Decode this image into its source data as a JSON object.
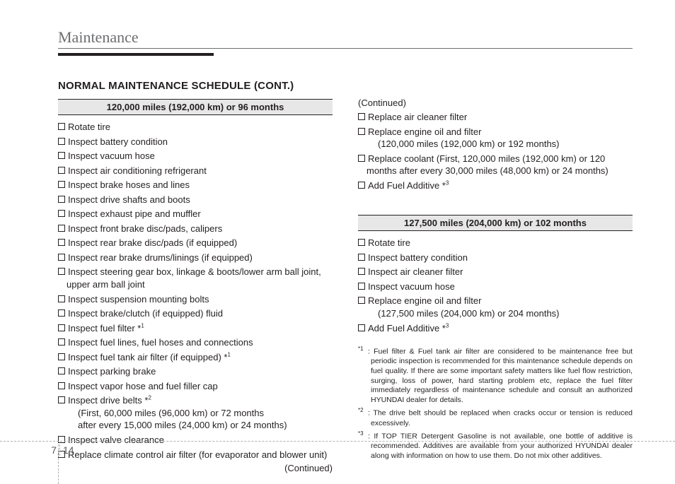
{
  "section_title": "Maintenance",
  "heading": "NORMAL MAINTENANCE SCHEDULE (CONT.)",
  "continued_label": "(Continued)",
  "left": {
    "band": "120,000 miles (192,000 km) or 96 months",
    "items": [
      {
        "text": "Rotate tire"
      },
      {
        "text": "Inspect battery condition"
      },
      {
        "text": "Inspect vacuum hose"
      },
      {
        "text": "Inspect air conditioning refrigerant"
      },
      {
        "text": "Inspect brake hoses and lines"
      },
      {
        "text": "Inspect drive shafts and boots"
      },
      {
        "text": "Inspect exhaust pipe and muffler"
      },
      {
        "text": "Inspect front brake disc/pads, calipers"
      },
      {
        "text": "Inspect rear brake disc/pads (if equipped)"
      },
      {
        "text": "Inspect rear brake drums/linings (if equipped)"
      },
      {
        "text": "Inspect steering gear box, linkage & boots/lower arm ball joint, upper arm ball joint"
      },
      {
        "text": "Inspect suspension mounting bolts"
      },
      {
        "text": "Inspect brake/clutch (if equipped) fluid"
      },
      {
        "text": "Inspect fuel filter *",
        "sup": "1"
      },
      {
        "text": "Inspect fuel lines, fuel hoses and connections"
      },
      {
        "text": "Inspect fuel tank air filter (if equipped) *",
        "sup": "1"
      },
      {
        "text": "Inspect parking brake"
      },
      {
        "text": "Inspect vapor hose and fuel filler cap"
      },
      {
        "text": "Inspect drive belts *",
        "sup": "2",
        "subs": [
          "(First, 60,000 miles (96,000 km) or 72 months",
          " after every 15,000 miles (24,000 km) or 24 months)"
        ]
      },
      {
        "text": "Inspect valve clearance"
      },
      {
        "text": "Replace climate control air filter (for evaporator and blower unit)"
      }
    ]
  },
  "right_top": {
    "items": [
      {
        "text": "Replace air cleaner filter"
      },
      {
        "text": "Replace engine oil and filter",
        "subs": [
          "(120,000 miles (192,000 km) or 192 months)"
        ]
      },
      {
        "text": "Replace coolant (First, 120,000 miles (192,000 km) or 120 months after every 30,000 miles (48,000 km) or 24 months)"
      },
      {
        "text": "Add Fuel Additive *",
        "sup": "3"
      }
    ]
  },
  "right_band": "127,500 miles (204,000 km) or 102 months",
  "right_bottom": {
    "items": [
      {
        "text": "Rotate tire"
      },
      {
        "text": "Inspect battery condition"
      },
      {
        "text": "Inspect air cleaner filter"
      },
      {
        "text": "Inspect vacuum hose"
      },
      {
        "text": "Replace engine oil and filter",
        "subs": [
          "(127,500 miles (204,000 km) or 204 months)"
        ]
      },
      {
        "text": "Add Fuel Additive *",
        "sup": "3"
      }
    ]
  },
  "notes": [
    {
      "label": "*1",
      "text": ": Fuel filter & Fuel tank air filter are considered to be maintenance free but periodic inspection is recommended for this maintenance schedule depends on fuel quality. If there are some important safety matters like fuel flow restriction, surging, loss of power, hard starting problem etc, replace the fuel filter immediately regardless  of maintenance schedule and consult an authorized HYUNDAI dealer for details."
    },
    {
      "label": "*2",
      "text": ": The drive belt should be replaced when cracks occur or tension is reduced excessively."
    },
    {
      "label": "*3",
      "text": ": If TOP TIER Detergent Gasoline is not available, one bottle of additive is recommended. Additives are available from your authorized HYUNDAI dealer along with information on how to use them. Do not mix other additives."
    }
  ],
  "footer": {
    "chapter": "7",
    "page": "14"
  },
  "colors": {
    "text": "#231f20",
    "section_title": "#6d6e71",
    "band_bg": "#e7e7e8",
    "dash": "#b0b1b3",
    "footer_text": "#58595b"
  }
}
